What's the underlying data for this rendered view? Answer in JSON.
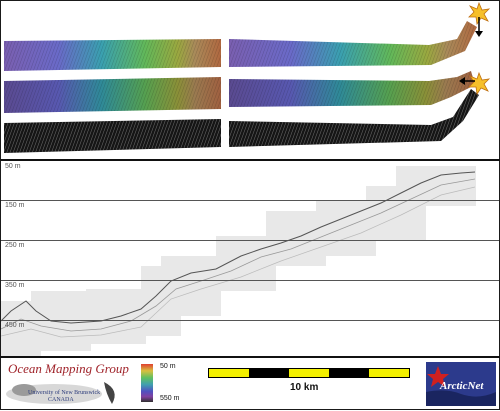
{
  "profile": {
    "depth_labels": [
      "50 m",
      "150 m",
      "250 m",
      "350 m",
      "450 m"
    ]
  },
  "colorbar": {
    "top_label": "50 m",
    "bottom_label": "550 m",
    "colors": [
      "#e04030",
      "#d8c040",
      "#60c060",
      "#40a0b0",
      "#5050c0",
      "#8040a0",
      "#303030"
    ]
  },
  "scale": {
    "label": "10 km",
    "segment_colors": [
      "#f3f000",
      "#000000",
      "#f3f000",
      "#000000",
      "#f3f000"
    ]
  },
  "logos": {
    "omg_title": "Ocean Mapping Group",
    "omg_university": "University of New Brunswick",
    "omg_country": "CANADA",
    "arcticnet": "ArcticNet"
  }
}
